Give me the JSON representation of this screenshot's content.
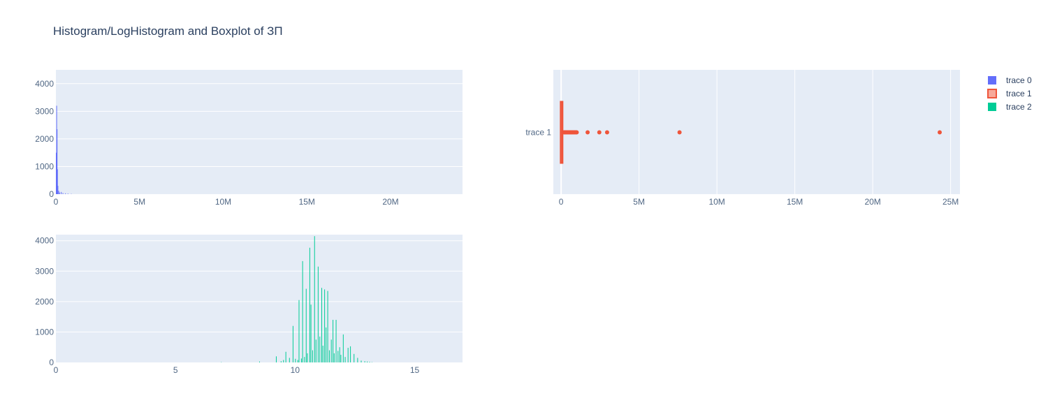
{
  "title": "Histogram/LogHistogram and Boxplot of ЗП",
  "colors": {
    "plot_bg": "#e5ecf6",
    "grid": "#ffffff",
    "trace0": "#636efa",
    "trace1": "#ef553b",
    "trace1_fill": "#f7a99a",
    "trace2": "#00cc96",
    "text": "#2a3f5f",
    "tick": "#506784"
  },
  "legend": {
    "placement": "top-right",
    "items": [
      {
        "name": "trace 0",
        "color": "#636efa",
        "symbol": "square"
      },
      {
        "name": "trace 1",
        "color": "#ef553b",
        "symbol": "box"
      },
      {
        "name": "trace 2",
        "color": "#00cc96",
        "symbol": "square"
      }
    ]
  },
  "chart_data": [
    {
      "type": "bar",
      "subplot": "top-left",
      "series_name": "trace 0",
      "title": "",
      "xlabel": "",
      "ylabel": "",
      "xlim": [
        0,
        24300000
      ],
      "ylim": [
        0,
        4500
      ],
      "x_ticks": [
        0,
        5000000,
        10000000,
        15000000,
        20000000
      ],
      "x_tick_labels": [
        "0",
        "5M",
        "10M",
        "15M",
        "20M"
      ],
      "y_ticks": [
        0,
        1000,
        2000,
        3000,
        4000
      ],
      "y_tick_labels": [
        "0",
        "1000",
        "2000",
        "3000",
        "4000"
      ],
      "bins": [
        {
          "x": 0,
          "y": 1500
        },
        {
          "x": 25000,
          "y": 3200
        },
        {
          "x": 50000,
          "y": 2350
        },
        {
          "x": 75000,
          "y": 900
        },
        {
          "x": 100000,
          "y": 300
        },
        {
          "x": 150000,
          "y": 120
        },
        {
          "x": 200000,
          "y": 60
        },
        {
          "x": 300000,
          "y": 80
        },
        {
          "x": 400000,
          "y": 40
        },
        {
          "x": 550000,
          "y": 30
        },
        {
          "x": 700000,
          "y": 20
        },
        {
          "x": 900000,
          "y": 10
        }
      ],
      "bin_width": 25000
    },
    {
      "type": "box",
      "subplot": "top-right",
      "series_name": "trace 1",
      "orientation": "horizontal",
      "category_label": "trace 1",
      "xlim": [
        -500000,
        25600000
      ],
      "x_ticks": [
        0,
        5000000,
        10000000,
        15000000,
        20000000,
        25000000
      ],
      "x_tick_labels": [
        "0",
        "5M",
        "10M",
        "15M",
        "20M",
        "25M"
      ],
      "box": {
        "q1": 30000,
        "median": 50000,
        "q3": 80000,
        "whisker_low": 0,
        "whisker_high": 160000
      },
      "outliers": [
        180000,
        220000,
        260000,
        300000,
        350000,
        400000,
        450000,
        500000,
        550000,
        600000,
        650000,
        700000,
        750000,
        800000,
        850000,
        900000,
        950000,
        1000000,
        1700000,
        2450000,
        2950000,
        7600000,
        24300000
      ]
    },
    {
      "type": "bar",
      "subplot": "bottom-left",
      "series_name": "trace 2",
      "title": "",
      "xlabel": "",
      "ylabel": "",
      "xlim": [
        0,
        17
      ],
      "ylim": [
        0,
        4200
      ],
      "x_ticks": [
        0,
        5,
        10,
        15
      ],
      "x_tick_labels": [
        "0",
        "5",
        "10",
        "15"
      ],
      "y_ticks": [
        0,
        1000,
        2000,
        3000,
        4000
      ],
      "y_tick_labels": [
        "0",
        "1000",
        "2000",
        "3000",
        "4000"
      ],
      "bin_width": 0.04,
      "bins": [
        {
          "x": 6.9,
          "y": 10
        },
        {
          "x": 8.5,
          "y": 30
        },
        {
          "x": 9.2,
          "y": 200
        },
        {
          "x": 9.4,
          "y": 40
        },
        {
          "x": 9.5,
          "y": 80
        },
        {
          "x": 9.6,
          "y": 350
        },
        {
          "x": 9.75,
          "y": 150
        },
        {
          "x": 9.9,
          "y": 1200
        },
        {
          "x": 10.0,
          "y": 120
        },
        {
          "x": 10.1,
          "y": 80
        },
        {
          "x": 10.15,
          "y": 2050
        },
        {
          "x": 10.25,
          "y": 130
        },
        {
          "x": 10.3,
          "y": 3330
        },
        {
          "x": 10.38,
          "y": 180
        },
        {
          "x": 10.45,
          "y": 2420
        },
        {
          "x": 10.5,
          "y": 300
        },
        {
          "x": 10.6,
          "y": 3770
        },
        {
          "x": 10.65,
          "y": 1900
        },
        {
          "x": 10.72,
          "y": 400
        },
        {
          "x": 10.8,
          "y": 4150
        },
        {
          "x": 10.86,
          "y": 750
        },
        {
          "x": 10.95,
          "y": 3150
        },
        {
          "x": 11.02,
          "y": 850
        },
        {
          "x": 11.1,
          "y": 2450
        },
        {
          "x": 11.15,
          "y": 550
        },
        {
          "x": 11.22,
          "y": 2400
        },
        {
          "x": 11.28,
          "y": 1150
        },
        {
          "x": 11.35,
          "y": 2350
        },
        {
          "x": 11.42,
          "y": 400
        },
        {
          "x": 11.5,
          "y": 750
        },
        {
          "x": 11.57,
          "y": 1400
        },
        {
          "x": 11.62,
          "y": 300
        },
        {
          "x": 11.7,
          "y": 1400
        },
        {
          "x": 11.78,
          "y": 380
        },
        {
          "x": 11.85,
          "y": 500
        },
        {
          "x": 11.9,
          "y": 250
        },
        {
          "x": 12.0,
          "y": 920
        },
        {
          "x": 12.08,
          "y": 180
        },
        {
          "x": 12.2,
          "y": 480
        },
        {
          "x": 12.3,
          "y": 530
        },
        {
          "x": 12.45,
          "y": 280
        },
        {
          "x": 12.6,
          "y": 150
        },
        {
          "x": 12.75,
          "y": 60
        },
        {
          "x": 12.9,
          "y": 40
        },
        {
          "x": 13.0,
          "y": 30
        },
        {
          "x": 13.1,
          "y": 20
        },
        {
          "x": 13.2,
          "y": 10
        }
      ]
    }
  ]
}
